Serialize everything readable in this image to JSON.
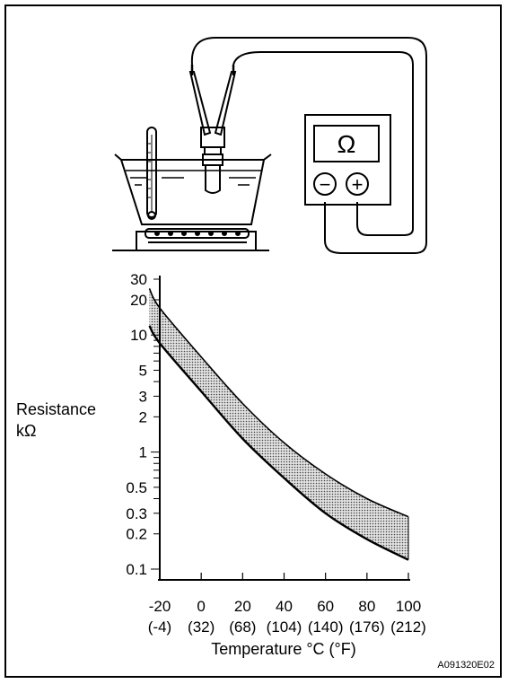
{
  "ohmmeter": {
    "ohm_symbol": "Ω",
    "minus_symbol": "−",
    "plus_symbol": "+"
  },
  "chart_data": {
    "type": "area",
    "title": "",
    "ylabel_line1": "Resistance",
    "ylabel_line2": "kΩ",
    "xlabel": "Temperature °C (°F)",
    "yscale": "log",
    "ylim": [
      0.1,
      30
    ],
    "xlim": [
      -25,
      100
    ],
    "x_ticks": [
      {
        "c": -20,
        "label": "-20",
        "f_label": "(-4)"
      },
      {
        "c": 0,
        "label": "0",
        "f_label": "(32)"
      },
      {
        "c": 20,
        "label": "20",
        "f_label": "(68)"
      },
      {
        "c": 40,
        "label": "40",
        "f_label": "(104)"
      },
      {
        "c": 60,
        "label": "60",
        "f_label": "(140)"
      },
      {
        "c": 80,
        "label": "80",
        "f_label": "(176)"
      },
      {
        "c": 100,
        "label": "100",
        "f_label": "(212)"
      }
    ],
    "y_ticks": [
      {
        "v": 30,
        "label": "30"
      },
      {
        "v": 20,
        "label": "20"
      },
      {
        "v": 10,
        "label": "10"
      },
      {
        "v": 5,
        "label": "5"
      },
      {
        "v": 3,
        "label": "3"
      },
      {
        "v": 2,
        "label": "2"
      },
      {
        "v": 1,
        "label": "1"
      },
      {
        "v": 0.5,
        "label": "0.5"
      },
      {
        "v": 0.3,
        "label": "0.3"
      },
      {
        "v": 0.2,
        "label": "0.2"
      },
      {
        "v": 0.1,
        "label": "0.1"
      }
    ],
    "grid": false,
    "series": [
      {
        "x": [
          -25,
          -20,
          0,
          20,
          40,
          60,
          80,
          100
        ],
        "upper": [
          25,
          17,
          6.5,
          2.6,
          1.2,
          0.65,
          0.4,
          0.28
        ],
        "lower": [
          12,
          8.5,
          3.3,
          1.3,
          0.6,
          0.3,
          0.18,
          0.12
        ]
      }
    ],
    "colors": {
      "band_fill": "#bcbcbc",
      "ink": "#000000"
    }
  },
  "figure_code": "A091320E02"
}
